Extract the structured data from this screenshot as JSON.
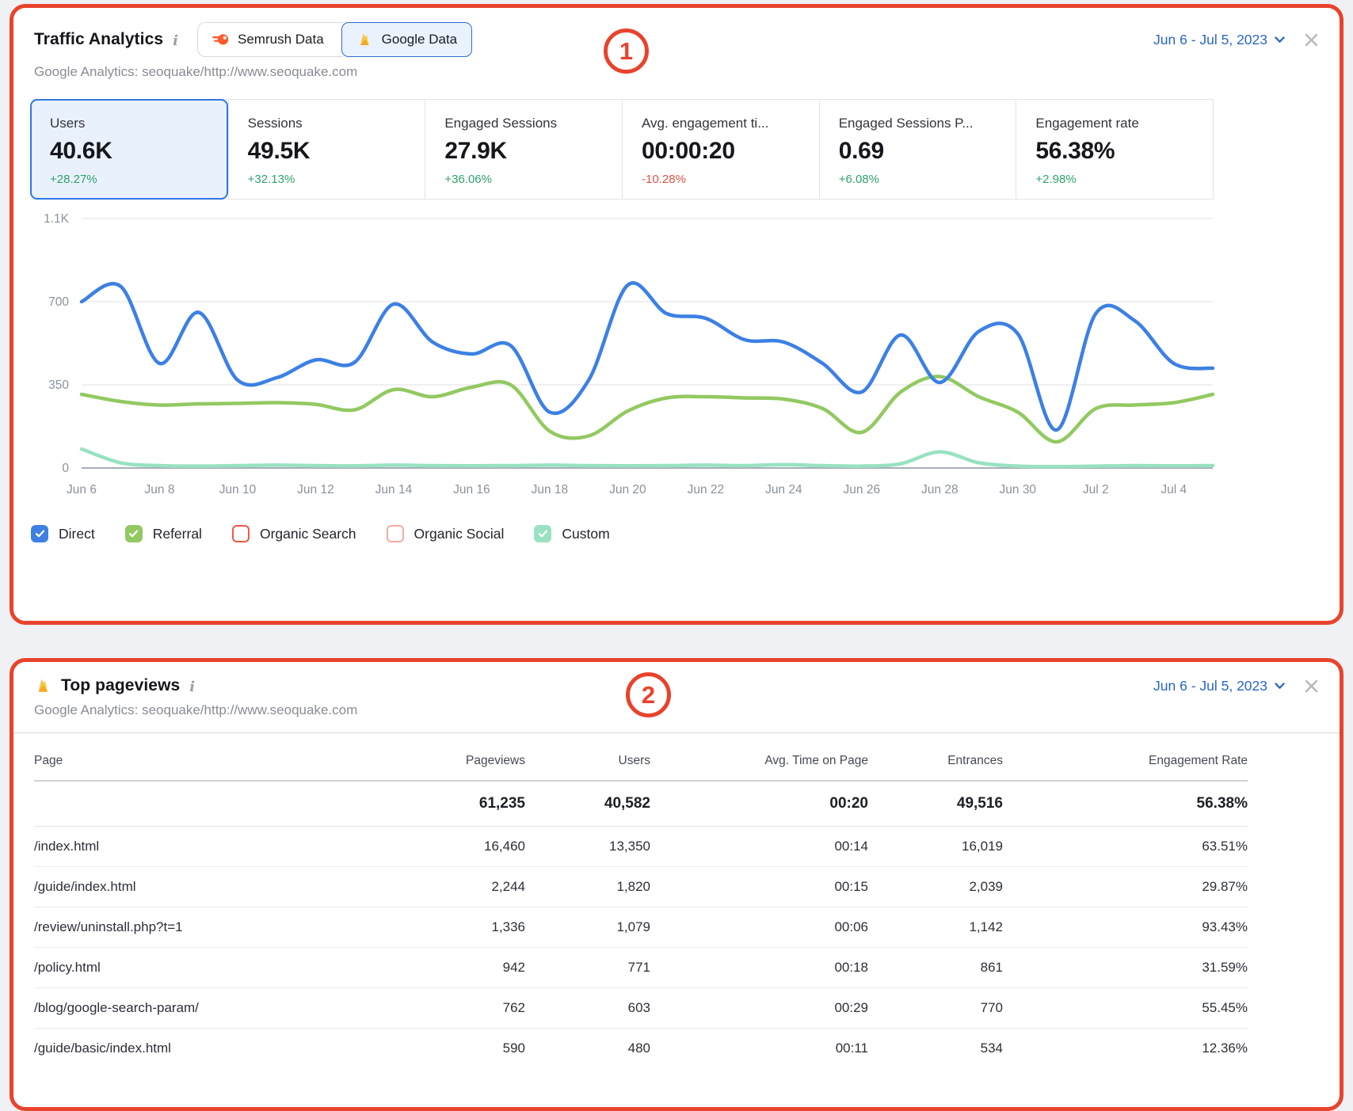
{
  "colors": {
    "annotation_red": "#e8432c",
    "link_blue": "#2a66c8",
    "positive_green": "#2fa36a",
    "negative_red": "#e25247",
    "selected_card_bg": "#e9f1fc",
    "selected_card_border": "#3077e3",
    "direct_blue": "#3c80e4",
    "referral_green": "#92c961",
    "organic_search_red": "#f0574a",
    "organic_social_pink": "#f6aaa4",
    "custom_mint": "#98e2c1"
  },
  "annotations": {
    "circle1": "1",
    "circle2": "2"
  },
  "panel1": {
    "title": "Traffic Analytics",
    "subtitle": "Google Analytics: seoquake/http://www.seoquake.com",
    "date_range": "Jun 6 - Jul 5, 2023",
    "source_toggle": [
      {
        "label": "Semrush Data",
        "icon": "semrush-logo-icon",
        "selected": false
      },
      {
        "label": "Google Data",
        "icon": "firebase-flame-icon",
        "selected": true
      }
    ],
    "metric_cards": [
      {
        "label": "Users",
        "value": "40.6K",
        "delta": "+28.27%",
        "direction": "up",
        "selected": true
      },
      {
        "label": "Sessions",
        "value": "49.5K",
        "delta": "+32.13%",
        "direction": "up",
        "selected": false
      },
      {
        "label": "Engaged Sessions",
        "value": "27.9K",
        "delta": "+36.06%",
        "direction": "up",
        "selected": false
      },
      {
        "label": "Avg. engagement ti...",
        "value": "00:00:20",
        "delta": "-10.28%",
        "direction": "down",
        "selected": false
      },
      {
        "label": "Engaged Sessions P...",
        "value": "0.69",
        "delta": "+6.08%",
        "direction": "up",
        "selected": false
      },
      {
        "label": "Engagement rate",
        "value": "56.38%",
        "delta": "+2.98%",
        "direction": "up",
        "selected": false
      }
    ],
    "legend": [
      {
        "label": "Direct",
        "checked": true,
        "color": "#3c80e4"
      },
      {
        "label": "Referral",
        "checked": true,
        "color": "#92c961"
      },
      {
        "label": "Organic Search",
        "checked": false,
        "color": "#f0574a"
      },
      {
        "label": "Organic Social",
        "checked": false,
        "color": "#f6aaa4"
      },
      {
        "label": "Custom",
        "checked": true,
        "color": "#98e2c1"
      }
    ]
  },
  "chart_data": {
    "type": "line",
    "title": "Traffic Analytics daily traffic by channel",
    "x": [
      "Jun 6",
      "Jun 7",
      "Jun 8",
      "Jun 9",
      "Jun 10",
      "Jun 11",
      "Jun 12",
      "Jun 13",
      "Jun 14",
      "Jun 15",
      "Jun 16",
      "Jun 17",
      "Jun 18",
      "Jun 19",
      "Jun 20",
      "Jun 21",
      "Jun 22",
      "Jun 23",
      "Jun 24",
      "Jun 25",
      "Jun 26",
      "Jun 27",
      "Jun 28",
      "Jun 29",
      "Jun 30",
      "Jul 1",
      "Jul 2",
      "Jul 3",
      "Jul 4",
      "Jul 5"
    ],
    "x_tick_indices": [
      0,
      2,
      4,
      6,
      8,
      10,
      12,
      14,
      16,
      18,
      20,
      22,
      24,
      26,
      28
    ],
    "y_ticks": [
      {
        "value": 0,
        "label": "0"
      },
      {
        "value": 350,
        "label": "350"
      },
      {
        "value": 700,
        "label": "700"
      },
      {
        "value": 1050,
        "label": "1.1K"
      }
    ],
    "ylim": [
      0,
      1050
    ],
    "grid": true,
    "legend_position": "bottom",
    "series": [
      {
        "name": "Custom",
        "color": "#98e2c1",
        "values": [
          80,
          22,
          10,
          8,
          10,
          12,
          10,
          9,
          12,
          10,
          9,
          10,
          12,
          10,
          9,
          10,
          12,
          10,
          14,
          10,
          8,
          18,
          68,
          22,
          8,
          6,
          8,
          10,
          9,
          10
        ]
      },
      {
        "name": "Referral",
        "color": "#92c961",
        "values": [
          310,
          280,
          265,
          270,
          272,
          275,
          268,
          245,
          330,
          300,
          340,
          350,
          155,
          135,
          240,
          295,
          300,
          295,
          290,
          250,
          150,
          320,
          385,
          300,
          235,
          110,
          250,
          265,
          275,
          310
        ]
      },
      {
        "name": "Direct",
        "color": "#3c80e4",
        "values": [
          700,
          765,
          440,
          655,
          370,
          380,
          455,
          445,
          690,
          530,
          480,
          515,
          235,
          370,
          770,
          650,
          630,
          540,
          530,
          440,
          320,
          560,
          360,
          575,
          565,
          160,
          650,
          620,
          440,
          420
        ]
      }
    ],
    "hidden_series": [
      "Organic Search",
      "Organic Social"
    ]
  },
  "panel2": {
    "title": "Top pageviews",
    "subtitle": "Google Analytics: seoquake/http://www.seoquake.com",
    "date_range": "Jun 6 - Jul 5, 2023",
    "table": {
      "columns": [
        "Page",
        "Pageviews",
        "Users",
        "Avg. Time on Page",
        "Entrances",
        "Engagement Rate"
      ],
      "totals": [
        "",
        "61,235",
        "40,582",
        "00:20",
        "49,516",
        "56.38%"
      ],
      "rows": [
        [
          "/index.html",
          "16,460",
          "13,350",
          "00:14",
          "16,019",
          "63.51%"
        ],
        [
          "/guide/index.html",
          "2,244",
          "1,820",
          "00:15",
          "2,039",
          "29.87%"
        ],
        [
          "/review/uninstall.php?t=1",
          "1,336",
          "1,079",
          "00:06",
          "1,142",
          "93.43%"
        ],
        [
          "/policy.html",
          "942",
          "771",
          "00:18",
          "861",
          "31.59%"
        ],
        [
          "/blog/google-search-param/",
          "762",
          "603",
          "00:29",
          "770",
          "55.45%"
        ],
        [
          "/guide/basic/index.html",
          "590",
          "480",
          "00:11",
          "534",
          "12.36%"
        ]
      ]
    }
  }
}
